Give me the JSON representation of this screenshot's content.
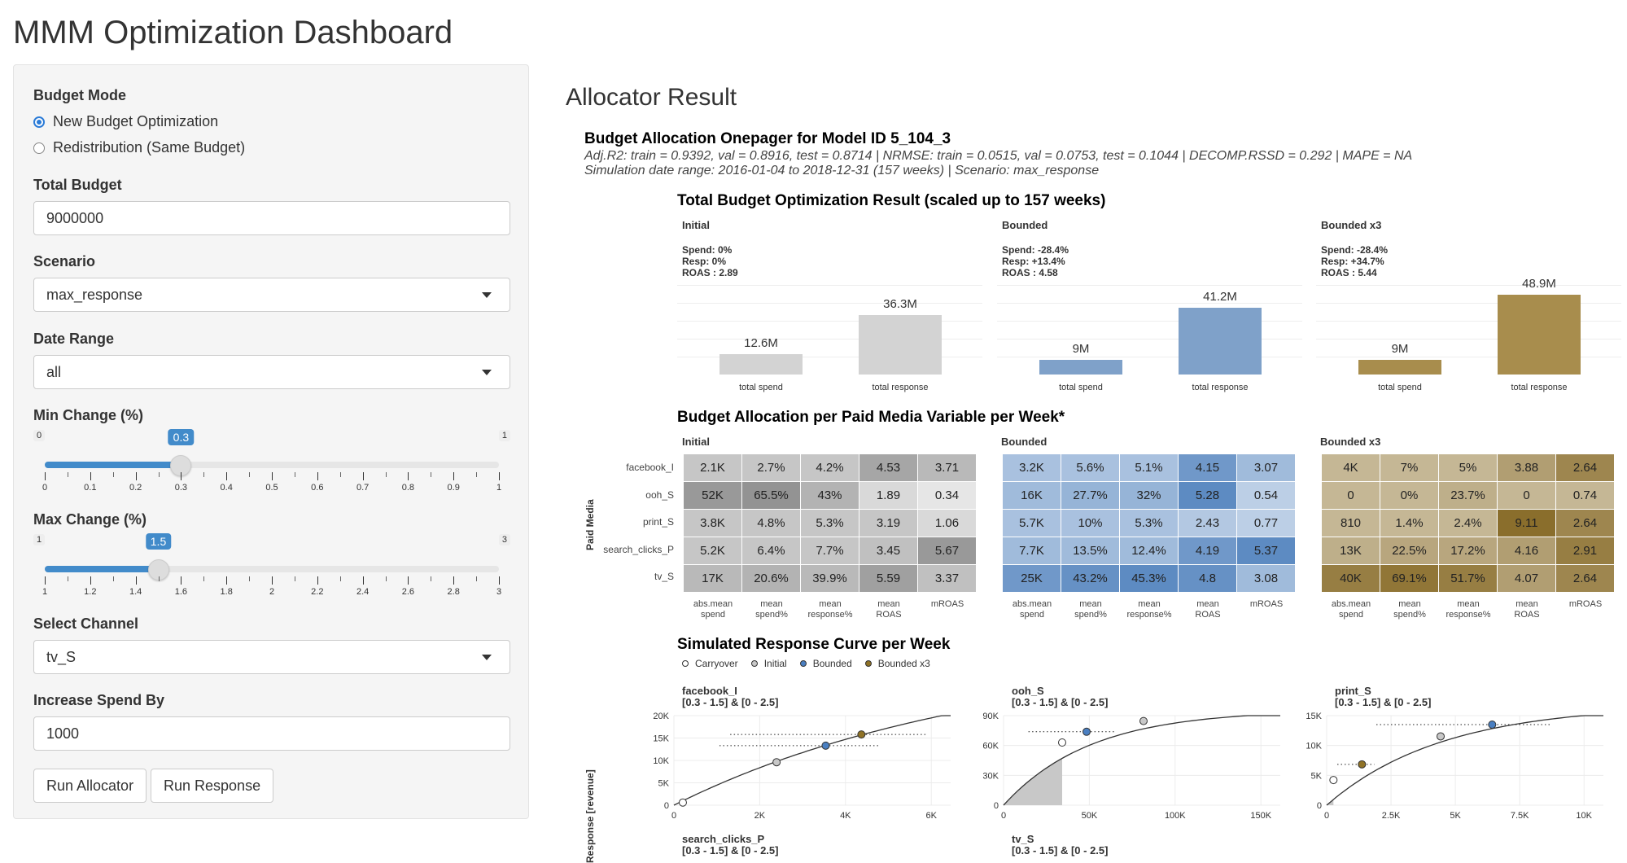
{
  "app_title": "MMM Optimization Dashboard",
  "sidebar": {
    "budget_mode": {
      "label": "Budget Mode",
      "options": [
        "New Budget Optimization",
        "Redistribution (Same Budget)"
      ],
      "selected": "New Budget Optimization"
    },
    "total_budget": {
      "label": "Total Budget",
      "value": "9000000"
    },
    "scenario": {
      "label": "Scenario",
      "value": "max_response"
    },
    "date_range": {
      "label": "Date Range",
      "value": "all"
    },
    "min_change": {
      "label": "Min Change (%)",
      "min": "0",
      "max": "1",
      "value": "0.3",
      "fraction": 0.3,
      "ticks": [
        "0",
        "0.1",
        "0.2",
        "0.3",
        "0.4",
        "0.5",
        "0.6",
        "0.7",
        "0.8",
        "0.9",
        "1"
      ]
    },
    "max_change": {
      "label": "Max Change (%)",
      "min": "1",
      "max": "3",
      "value": "1.5",
      "fraction": 0.25,
      "ticks": [
        "1",
        "1.2",
        "1.4",
        "1.6",
        "1.8",
        "2",
        "2.2",
        "2.4",
        "2.6",
        "2.8",
        "3"
      ]
    },
    "select_channel": {
      "label": "Select Channel",
      "value": "tv_S"
    },
    "increase_spend": {
      "label": "Increase Spend By",
      "value": "1000"
    },
    "buttons": {
      "run_allocator": "Run Allocator",
      "run_response": "Run Response"
    }
  },
  "main": {
    "title": "Allocator Result",
    "onepager": {
      "title": "Budget Allocation Onepager for Model ID 5_104_3",
      "metrics": "Adj.R2: train = 0.9392, val = 0.8916, test = 0.8714 | NRMSE: train = 0.0515, val = 0.0753, test = 0.1044 | DECOMP.RSSD = 0.292 | MAPE = NA",
      "simulation": "Simulation date range: 2016-01-04 to 2018-12-31 (157 weeks) | Scenario: max_response"
    },
    "total_result": {
      "title": "Total Budget Optimization Result (scaled up to 157 weeks)",
      "panels": [
        {
          "label": "Initial",
          "spend": "Spend: 0%",
          "resp": "Resp: 0%",
          "roas": "ROAS : 2.89",
          "color": "#d3d3d3",
          "bars": [
            {
              "x": "total spend",
              "label": "12.6M",
              "value": 12.6
            },
            {
              "x": "total response",
              "label": "36.3M",
              "value": 36.3
            }
          ]
        },
        {
          "label": "Bounded",
          "spend": "Spend: -28.4%",
          "resp": "Resp: +13.4%",
          "roas": "ROAS : 4.58",
          "color": "#7fa1c9",
          "bars": [
            {
              "x": "total spend",
              "label": "9M",
              "value": 9
            },
            {
              "x": "total response",
              "label": "41.2M",
              "value": 41.2
            }
          ]
        },
        {
          "label": "Bounded x3",
          "spend": "Spend: -28.4%",
          "resp": "Resp: +34.7%",
          "roas": "ROAS : 5.44",
          "color": "#a88d4d",
          "bars": [
            {
              "x": "total spend",
              "label": "9M",
              "value": 9
            },
            {
              "x": "total response",
              "label": "48.9M",
              "value": 48.9
            }
          ]
        }
      ]
    },
    "allocation": {
      "title": "Budget Allocation per Paid Media Variable per Week*",
      "y_label": "Paid Media",
      "rows": [
        "facebook_I",
        "ooh_S",
        "print_S",
        "search_clicks_P",
        "tv_S"
      ],
      "columns": [
        [
          "abs.mean",
          "spend"
        ],
        [
          "mean",
          "spend%"
        ],
        [
          "mean",
          "response%"
        ],
        [
          "mean",
          "ROAS"
        ],
        [
          "",
          "mROAS"
        ]
      ],
      "panels": [
        {
          "label": "Initial",
          "base": [
            128,
            128,
            128
          ],
          "cells": [
            [
              "2.1K",
              "2.7%",
              "4.2%",
              "4.53",
              "3.71"
            ],
            [
              "52K",
              "65.5%",
              "43%",
              "1.89",
              "0.34"
            ],
            [
              "3.8K",
              "4.8%",
              "5.3%",
              "3.19",
              "1.06"
            ],
            [
              "5.2K",
              "6.4%",
              "7.7%",
              "3.45",
              "5.67"
            ],
            [
              "17K",
              "20.6%",
              "39.9%",
              "5.59",
              "3.37"
            ]
          ],
          "intensity": [
            [
              0.45,
              0.45,
              0.45,
              0.7,
              0.55
            ],
            [
              0.8,
              0.85,
              0.6,
              0.3,
              0.2
            ],
            [
              0.45,
              0.45,
              0.45,
              0.45,
              0.3
            ],
            [
              0.45,
              0.45,
              0.45,
              0.5,
              0.8
            ],
            [
              0.55,
              0.6,
              0.55,
              0.75,
              0.5
            ]
          ]
        },
        {
          "label": "Bounded",
          "base": [
            64,
            118,
            183
          ],
          "cells": [
            [
              "3.2K",
              "5.6%",
              "5.1%",
              "4.15",
              "3.07"
            ],
            [
              "16K",
              "27.7%",
              "32%",
              "5.28",
              "0.54"
            ],
            [
              "5.7K",
              "10%",
              "5.3%",
              "2.43",
              "0.77"
            ],
            [
              "7.7K",
              "13.5%",
              "12.4%",
              "4.19",
              "5.37"
            ],
            [
              "25K",
              "43.2%",
              "45.3%",
              "4.8",
              "3.08"
            ]
          ],
          "intensity": [
            [
              0.45,
              0.45,
              0.45,
              0.75,
              0.5
            ],
            [
              0.5,
              0.55,
              0.55,
              0.85,
              0.35
            ],
            [
              0.45,
              0.45,
              0.45,
              0.4,
              0.35
            ],
            [
              0.5,
              0.5,
              0.5,
              0.75,
              0.85
            ],
            [
              0.75,
              0.8,
              0.85,
              0.8,
              0.5
            ]
          ]
        },
        {
          "label": "Bounded x3",
          "base": [
            125,
            94,
            20
          ],
          "cells": [
            [
              "4K",
              "7%",
              "5%",
              "3.88",
              "2.64"
            ],
            [
              "0",
              "0%",
              "23.7%",
              "0",
              "0.74"
            ],
            [
              "810",
              "1.4%",
              "2.4%",
              "9.11",
              "2.64"
            ],
            [
              "13K",
              "22.5%",
              "17.2%",
              "4.16",
              "2.91"
            ],
            [
              "40K",
              "69.1%",
              "51.7%",
              "4.07",
              "2.64"
            ]
          ],
          "intensity": [
            [
              0.45,
              0.45,
              0.45,
              0.6,
              0.75
            ],
            [
              0.45,
              0.45,
              0.5,
              0.45,
              0.45
            ],
            [
              0.45,
              0.45,
              0.45,
              0.9,
              0.75
            ],
            [
              0.5,
              0.55,
              0.55,
              0.6,
              0.8
            ],
            [
              0.8,
              0.85,
              0.8,
              0.6,
              0.75
            ]
          ]
        }
      ]
    },
    "response_curve": {
      "title": "Simulated Response Curve per Week",
      "y_label": "Response [revenue]",
      "legend": [
        {
          "label": "Carryover",
          "color": "#ffffff"
        },
        {
          "label": "Initial",
          "color": "#c8c8c8"
        },
        {
          "label": "Bounded",
          "color": "#4a7fc1"
        },
        {
          "label": "Bounded x3",
          "color": "#8f7226"
        }
      ],
      "panels": [
        {
          "name": "facebook_I",
          "range": "[0.3 - 1.5] & [0 - 2.5]",
          "yticks": [
            "20K",
            "15K",
            "10K",
            "5K",
            "0"
          ],
          "xticks": [
            "0",
            "2K",
            "4K",
            "6K"
          ],
          "xmax": 6200,
          "ymax": 20000,
          "points": {
            "carryover": [
              200,
              600
            ],
            "initial": [
              2300,
              9600
            ],
            "bounded": [
              3400,
              13300
            ],
            "bounded3": [
              4200,
              15800
            ]
          },
          "shade_to": 0
        },
        {
          "name": "ooh_S",
          "range": "[0.3 - 1.5] & [0 - 2.5]",
          "yticks": [
            "90K",
            "60K",
            "30K",
            "0"
          ],
          "xticks": [
            "0",
            "50K",
            "100K",
            "150K"
          ],
          "xmax": 170000,
          "ymax": 100000,
          "points": {
            "carryover": [
              36000,
              70000
            ],
            "initial": [
              86000,
              94000
            ],
            "bounded": [
              51000,
              82000
            ],
            "bounded3": null
          },
          "shade_to": 36000
        },
        {
          "name": "print_S",
          "range": "[0.3 - 1.5] & [0 - 2.5]",
          "yticks": [
            "15K",
            "10K",
            "5K",
            "0"
          ],
          "xticks": [
            "0",
            "2.5K",
            "5K",
            "7.5K",
            "10K"
          ],
          "xmax": 10200,
          "ymax": 16000,
          "points": {
            "carryover": [
              250,
              4500
            ],
            "initial": [
              4200,
              12300
            ],
            "bounded": [
              6100,
              14400
            ],
            "bounded3": [
              1300,
              7300
            ]
          },
          "shade_to": 250
        }
      ],
      "bottom_panels": [
        {
          "name": "search_clicks_P",
          "range": "[0.3 - 1.5] & [0 - 2.5]"
        },
        {
          "name": "tv_S",
          "range": "[0.3 - 1.5] & [0 - 2.5]"
        }
      ]
    }
  }
}
